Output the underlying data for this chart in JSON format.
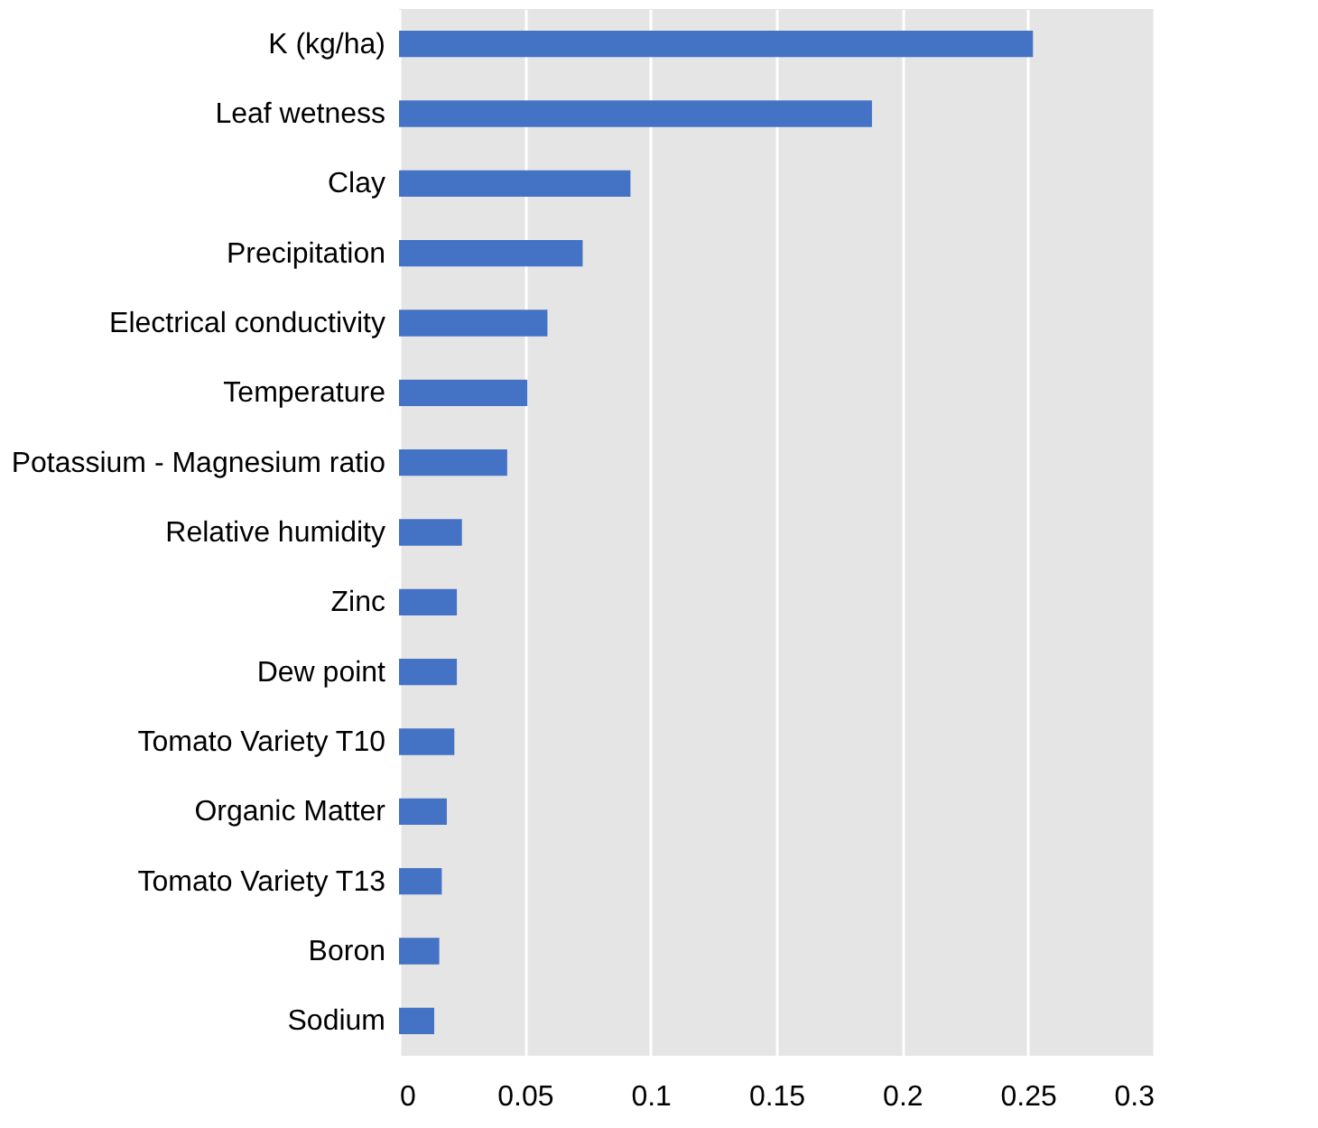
{
  "chart_data": {
    "type": "bar",
    "orientation": "horizontal",
    "categories": [
      "K (kg/ha)",
      "Leaf wetness",
      "Clay",
      "Precipitation",
      "Electrical conductivity",
      "Temperature",
      "Potassium - Magnesium ratio",
      "Relative humidity",
      "Zinc",
      "Dew point",
      "Tomato Variety T10",
      "Organic Matter",
      "Tomato Variety T13",
      "Boron",
      "Sodium"
    ],
    "values": [
      0.252,
      0.188,
      0.092,
      0.073,
      0.059,
      0.051,
      0.043,
      0.025,
      0.023,
      0.023,
      0.022,
      0.019,
      0.017,
      0.016,
      0.014
    ],
    "color": "#4472c4",
    "xlim": [
      0,
      0.3
    ],
    "xticks": [
      0,
      0.05,
      0.1,
      0.15,
      0.2,
      0.25,
      0.3
    ],
    "grid": "x"
  }
}
